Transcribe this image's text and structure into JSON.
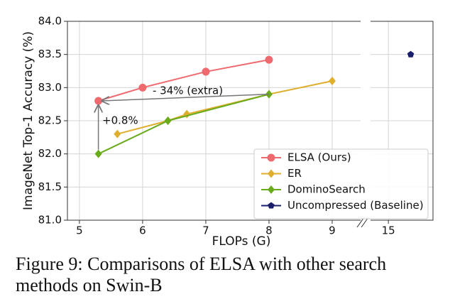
{
  "chart_data": {
    "type": "line",
    "xlabel": "FLOPs (G)",
    "ylabel": "ImageNet Top-1 Accuracy (%)",
    "ylim": [
      81.0,
      84.0
    ],
    "yticks": [
      {
        "value": 81.0,
        "label": "81.0"
      },
      {
        "value": 81.5,
        "label": "81.5"
      },
      {
        "value": 82.0,
        "label": "82.0"
      },
      {
        "value": 82.5,
        "label": "82.5"
      },
      {
        "value": 83.0,
        "label": "83.0"
      },
      {
        "value": 83.5,
        "label": "83.5"
      },
      {
        "value": 84.0,
        "label": "84.0"
      }
    ],
    "panels": [
      {
        "xlim": [
          4.81,
          9.45
        ],
        "xticks": [
          5,
          6,
          7,
          8,
          9
        ]
      },
      {
        "xlim": [
          14.68,
          15.8
        ],
        "xticks": [
          15
        ]
      }
    ],
    "grid": true,
    "legend": "lower right",
    "series": [
      {
        "name": "ELSA (Ours)",
        "color": "#ef6a6e",
        "marker": "circle",
        "panel": 0,
        "x": [
          5.3,
          6,
          7,
          8
        ],
        "values": [
          82.8,
          83.0,
          83.24,
          83.42
        ]
      },
      {
        "name": "ER",
        "color": "#dfae2c",
        "marker": "diamond",
        "panel": 0,
        "x": [
          5.6,
          6.4,
          6.7,
          8,
          9
        ],
        "values": [
          82.3,
          82.5,
          82.6,
          82.9,
          83.1
        ]
      },
      {
        "name": "DominoSearch",
        "color": "#6aab1c",
        "marker": "diamond",
        "panel": 0,
        "x": [
          5.3,
          6.4,
          8
        ],
        "values": [
          82.0,
          82.5,
          82.9
        ]
      },
      {
        "name": "Uncompressed (Baseline)",
        "color": "#1b1f6b",
        "marker": "pentagon",
        "panel": 1,
        "x": [
          15.4
        ],
        "values": [
          83.5
        ]
      }
    ],
    "annotations": [
      {
        "text": "- 34% (extra)"
      },
      {
        "text": "+0.8%"
      }
    ]
  },
  "caption": {
    "lines": [
      "Figure 9: Comparisons of ELSA with other search",
      "methods on Swin-B"
    ]
  }
}
